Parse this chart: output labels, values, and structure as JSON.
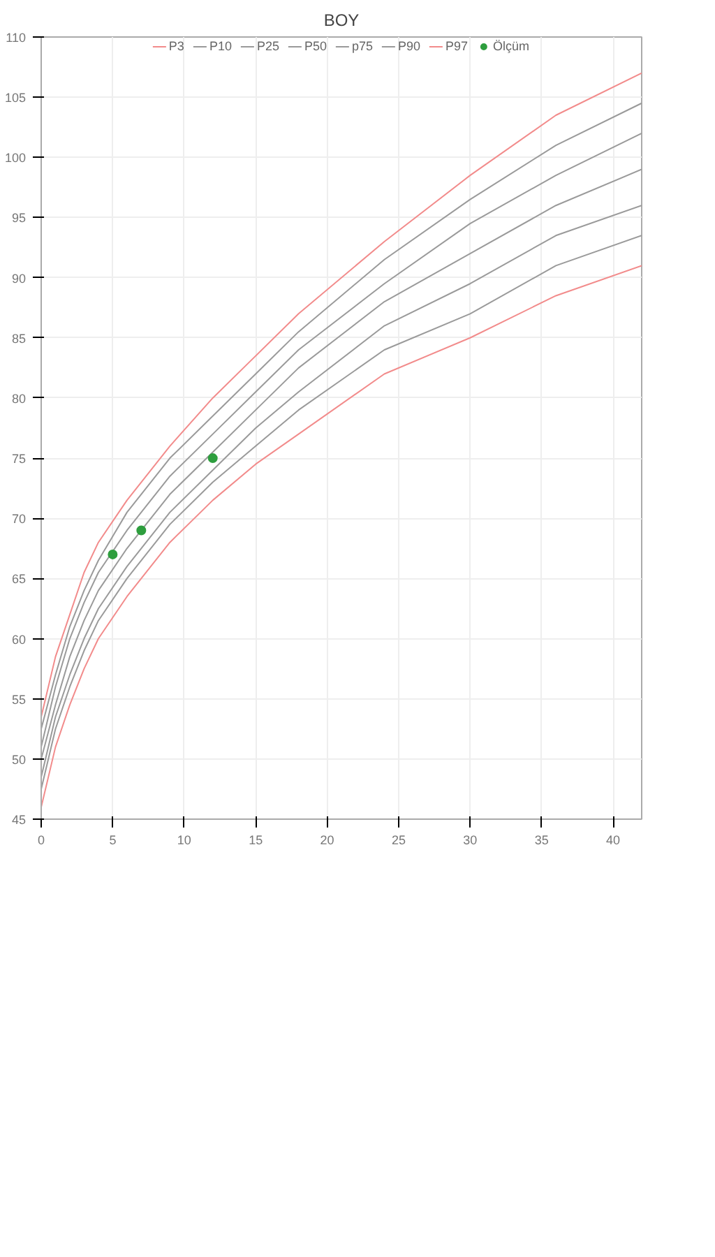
{
  "chart_data": {
    "type": "line",
    "title": "BOY",
    "x": [
      0,
      1,
      2,
      3,
      4,
      6,
      9,
      12,
      15,
      18,
      24,
      30,
      36,
      42
    ],
    "xlim": [
      0,
      42
    ],
    "xticks": [
      0,
      5,
      10,
      15,
      20,
      25,
      30,
      35,
      40
    ],
    "ylim": [
      45,
      110
    ],
    "yticks": [
      45,
      50,
      55,
      60,
      65,
      70,
      75,
      80,
      85,
      90,
      95,
      100,
      105,
      110
    ],
    "grid": true,
    "legend": "top",
    "series": [
      {
        "name": "P3",
        "color": "#f28b8b",
        "values": [
          46,
          51,
          54.5,
          57.5,
          60,
          63.5,
          68,
          71.5,
          74.5,
          77,
          82,
          85,
          88.5,
          91
        ]
      },
      {
        "name": "P10",
        "color": "#9a9a9a",
        "values": [
          47.5,
          52.5,
          56,
          59,
          61.5,
          65,
          69.5,
          73,
          76,
          79,
          84,
          87,
          91,
          93.5
        ]
      },
      {
        "name": "P25",
        "color": "#9a9a9a",
        "values": [
          48.5,
          53.5,
          57,
          60,
          62.5,
          66,
          70.5,
          74,
          77.5,
          80.5,
          86,
          89.5,
          93.5,
          96
        ]
      },
      {
        "name": "P50",
        "color": "#9a9a9a",
        "values": [
          50,
          54.5,
          58.5,
          61.5,
          64,
          67.5,
          72,
          75.5,
          79,
          82.5,
          88,
          92,
          96,
          99
        ]
      },
      {
        "name": "p75",
        "color": "#9a9a9a",
        "values": [
          51,
          56,
          60,
          63,
          65.5,
          69,
          73.5,
          77,
          80.5,
          84,
          89.5,
          94.5,
          98.5,
          102
        ]
      },
      {
        "name": "P90",
        "color": "#9a9a9a",
        "values": [
          52.5,
          57,
          61,
          64,
          66.5,
          70.5,
          75,
          78.5,
          82,
          85.5,
          91.5,
          96.5,
          101,
          104.5
        ]
      },
      {
        "name": "P97",
        "color": "#f28b8b",
        "values": [
          53.5,
          58.5,
          62,
          65.5,
          68,
          71.5,
          76,
          80,
          83.5,
          87,
          93,
          98.5,
          103.5,
          107
        ]
      },
      {
        "name": "Ölçüm",
        "type": "scatter",
        "marker": "circle",
        "color": "#2e9e3e",
        "x": [
          5,
          7,
          12
        ],
        "values": [
          67,
          69,
          75
        ]
      }
    ]
  }
}
